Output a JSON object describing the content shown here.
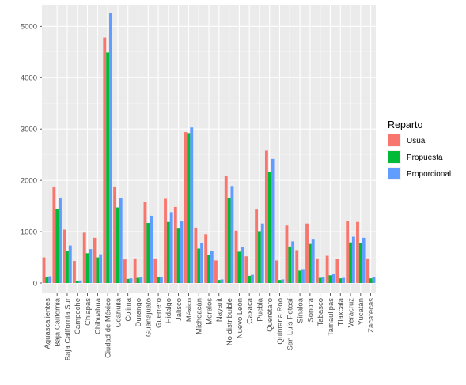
{
  "chart_data": {
    "type": "bar",
    "categories": [
      "Aguascalientes",
      "Baja California",
      "Baja California Sur",
      "Campeche",
      "Chiapas",
      "Chihuahua",
      "Ciudad de México",
      "Coahuila",
      "Colima",
      "Durango",
      "Guanajuato",
      "Guerrero",
      "Hidalgo",
      "Jalisco",
      "México",
      "Michoacán",
      "Morelos",
      "Nayarit",
      "No distribuible",
      "Nuevo León",
      "Oaxaca",
      "Puebla",
      "Querétaro",
      "Quintana Roo",
      "San Luis Potosí",
      "Sinaloa",
      "Sonora",
      "Tabasco",
      "Tamaulipas",
      "Tlaxcala",
      "Veracruz",
      "Yucatán",
      "Zacatecas"
    ],
    "series": [
      {
        "name": "Usual",
        "color": "#F8766D",
        "values": [
          500,
          1880,
          1040,
          430,
          980,
          880,
          4780,
          1880,
          460,
          480,
          1580,
          480,
          1640,
          1480,
          2940,
          1080,
          950,
          440,
          2090,
          1020,
          520,
          1430,
          2580,
          440,
          1120,
          640,
          1160,
          480,
          530,
          470,
          1210,
          1190,
          480
        ]
      },
      {
        "name": "Propuesta",
        "color": "#00BA38",
        "values": [
          110,
          1440,
          630,
          40,
          580,
          500,
          4490,
          1470,
          80,
          100,
          1170,
          110,
          1190,
          1060,
          2920,
          670,
          540,
          60,
          1660,
          610,
          140,
          1010,
          2160,
          60,
          710,
          240,
          760,
          100,
          150,
          90,
          790,
          770,
          90
        ]
      },
      {
        "name": "Proporcional",
        "color": "#619CFF",
        "values": [
          130,
          1650,
          730,
          50,
          660,
          560,
          5260,
          1650,
          90,
          110,
          1310,
          120,
          1380,
          1200,
          3030,
          770,
          620,
          70,
          1890,
          700,
          160,
          1160,
          2420,
          70,
          810,
          270,
          860,
          120,
          170,
          100,
          900,
          880,
          110
        ]
      }
    ],
    "yticks": [
      0,
      1000,
      2000,
      3000,
      4000,
      5000
    ],
    "ylim": [
      -200,
      5420
    ],
    "xlabel": "",
    "ylabel": "",
    "grid": true,
    "legend": {
      "title": "Reparto",
      "position": "right"
    },
    "colors": {
      "panel": "#EBEBEB",
      "grid_major": "#FFFFFF",
      "grid_minor": "#F4F4F4"
    }
  }
}
